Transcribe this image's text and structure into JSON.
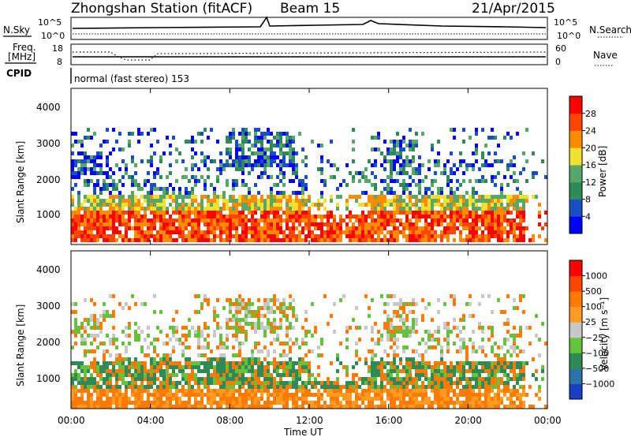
{
  "header": {
    "station": "Zhongshan Station (fitACF)",
    "beam": "Beam 15",
    "date": "21/Apr/2015"
  },
  "top_panels": {
    "nsky_label": "N.Sky",
    "nsearch_label": "N.Search",
    "noise_ticks": [
      "10^5",
      "10^0"
    ],
    "freq_label_1": "Freq.",
    "freq_label_2": "[MHz]",
    "freq_ticks": [
      "18",
      "8"
    ],
    "nave_ticks": [
      "60",
      "0"
    ],
    "nave_label": "Nave",
    "cpid_label": "CPID",
    "cpid_text": "normal (fast stereo) 153"
  },
  "chart_data": [
    {
      "type": "heatmap",
      "name": "power",
      "ylabel": "Slant Range [km]",
      "y_ticks": [
        "4000",
        "3000",
        "2000",
        "1000"
      ],
      "ylim": [
        200,
        4600
      ],
      "colorbar_label": "Power [dB]",
      "colorbar_ticks": [
        "28",
        "24",
        "20",
        "16",
        "12",
        "8",
        "4"
      ],
      "colors": [
        "#0000ff",
        "#1a4fc4",
        "#2e8b57",
        "#55a868",
        "#f0e030",
        "#ff8c00",
        "#ff4500",
        "#ff0000"
      ]
    },
    {
      "type": "heatmap",
      "name": "velocity",
      "ylabel": "Slant Range [km]",
      "y_ticks": [
        "4000",
        "3000",
        "2000",
        "1000"
      ],
      "ylim": [
        200,
        4600
      ],
      "colorbar_label": "Velocity [m s⁻¹]",
      "colorbar_ticks": [
        "1000",
        "500",
        "100",
        "25",
        "−25",
        "−100",
        "−500",
        "−1000"
      ],
      "colors": [
        "#1a3fc4",
        "#2a72a8",
        "#2e8b57",
        "#66c23a",
        "#c8c8c8",
        "#ff9b21",
        "#ff7a00",
        "#ff4500",
        "#ff0000"
      ]
    }
  ],
  "time_axis": {
    "label": "Time UT",
    "ticks": [
      "00:00",
      "04:00",
      "08:00",
      "12:00",
      "16:00",
      "20:00",
      "00:00"
    ]
  }
}
